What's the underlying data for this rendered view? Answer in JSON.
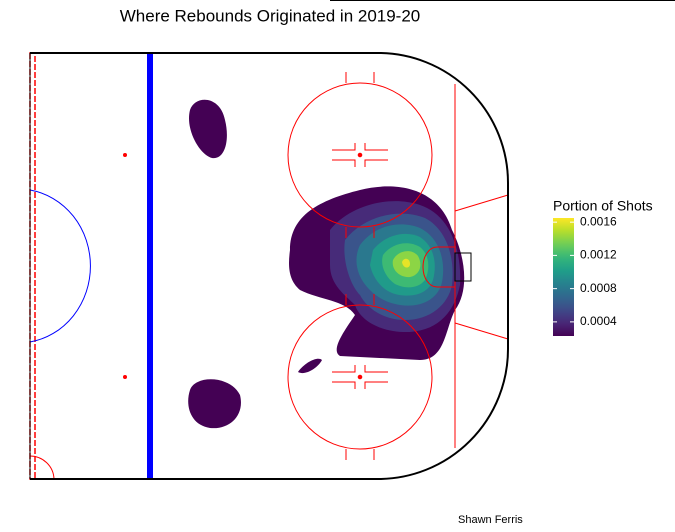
{
  "chart_data": {
    "type": "density-contour",
    "title": "Where Rebounds Originated in 2019-20",
    "legend_title": "Portion of Shots",
    "colorlim": [
      0.00023,
      0.00165
    ],
    "colorticks": [
      0.0004,
      0.0008,
      0.0012,
      0.0016
    ],
    "levels": [
      0.0002,
      0.0004,
      0.0006,
      0.0008,
      0.001,
      0.0012,
      0.0014,
      0.0016
    ],
    "palette": "viridis",
    "caption": "Shawn Ferris"
  }
}
